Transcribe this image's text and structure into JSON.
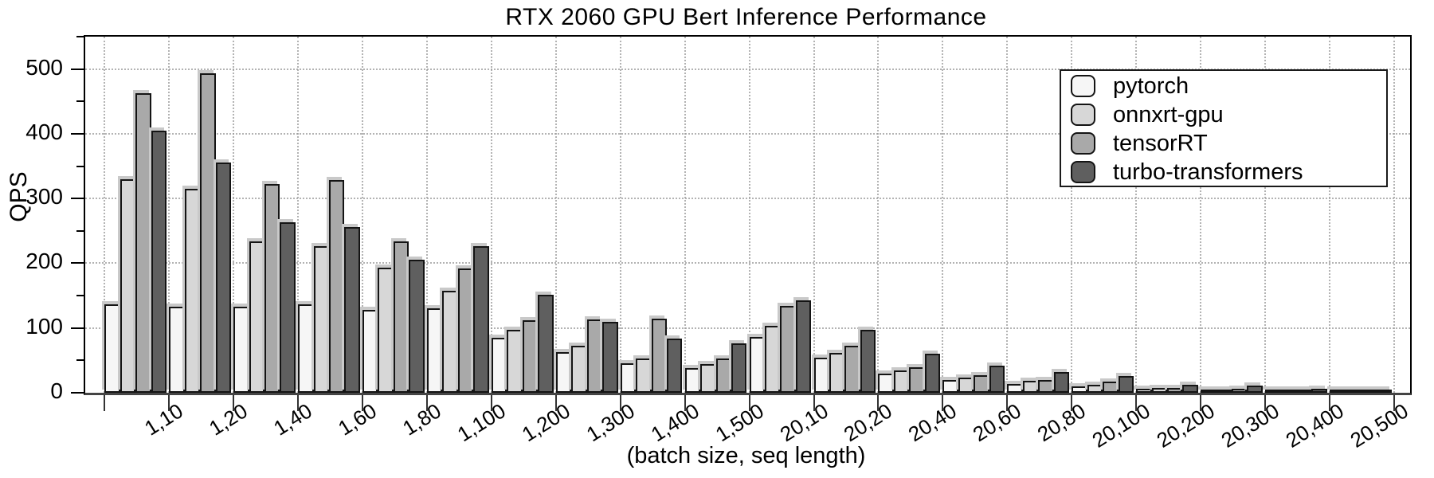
{
  "chart_data": {
    "type": "bar",
    "title": "RTX 2060 GPU Bert Inference Performance",
    "xlabel": "(batch size, seq length)",
    "ylabel": "QPS",
    "ylim": [
      0,
      550
    ],
    "yticks": [
      0,
      100,
      200,
      300,
      400,
      500
    ],
    "yticks_minor": [
      50,
      150,
      250,
      350,
      450,
      550
    ],
    "grid": "dotted",
    "legend_position": "upper right",
    "categories": [
      "1,10",
      "1,20",
      "1,40",
      "1,60",
      "1,80",
      "1,100",
      "1,200",
      "1,300",
      "1,400",
      "1,500",
      "20,10",
      "20,20",
      "20,40",
      "20,60",
      "20,80",
      "20,100",
      "20,200",
      "20,300",
      "20,400",
      "20,500"
    ],
    "series": [
      {
        "name": "pytorch",
        "color": "#f6f6f6",
        "values": [
          137,
          133,
          133,
          136,
          128,
          131,
          85,
          63,
          46,
          38,
          86,
          54,
          29,
          20,
          14,
          10,
          6,
          3.5,
          2,
          1.5
        ]
      },
      {
        "name": "onnxrt-gpu",
        "color": "#d7d7d7",
        "values": [
          330,
          315,
          234,
          226,
          193,
          157,
          97,
          73,
          53,
          44,
          103,
          61,
          34,
          24,
          18,
          12,
          7,
          5,
          2.5,
          2
        ]
      },
      {
        "name": "tensorRT",
        "color": "#a9a9a9",
        "values": [
          463,
          493,
          323,
          328,
          234,
          192,
          112,
          113,
          114,
          53,
          134,
          72,
          39,
          27,
          20,
          17,
          8,
          6,
          3,
          2.5
        ]
      },
      {
        "name": "turbo-transformers",
        "color": "#5f5f5f",
        "values": [
          405,
          356,
          263,
          256,
          206,
          226,
          151,
          109,
          84,
          76,
          143,
          97,
          60,
          42,
          32,
          26,
          12,
          11,
          6,
          4.5
        ]
      }
    ]
  }
}
